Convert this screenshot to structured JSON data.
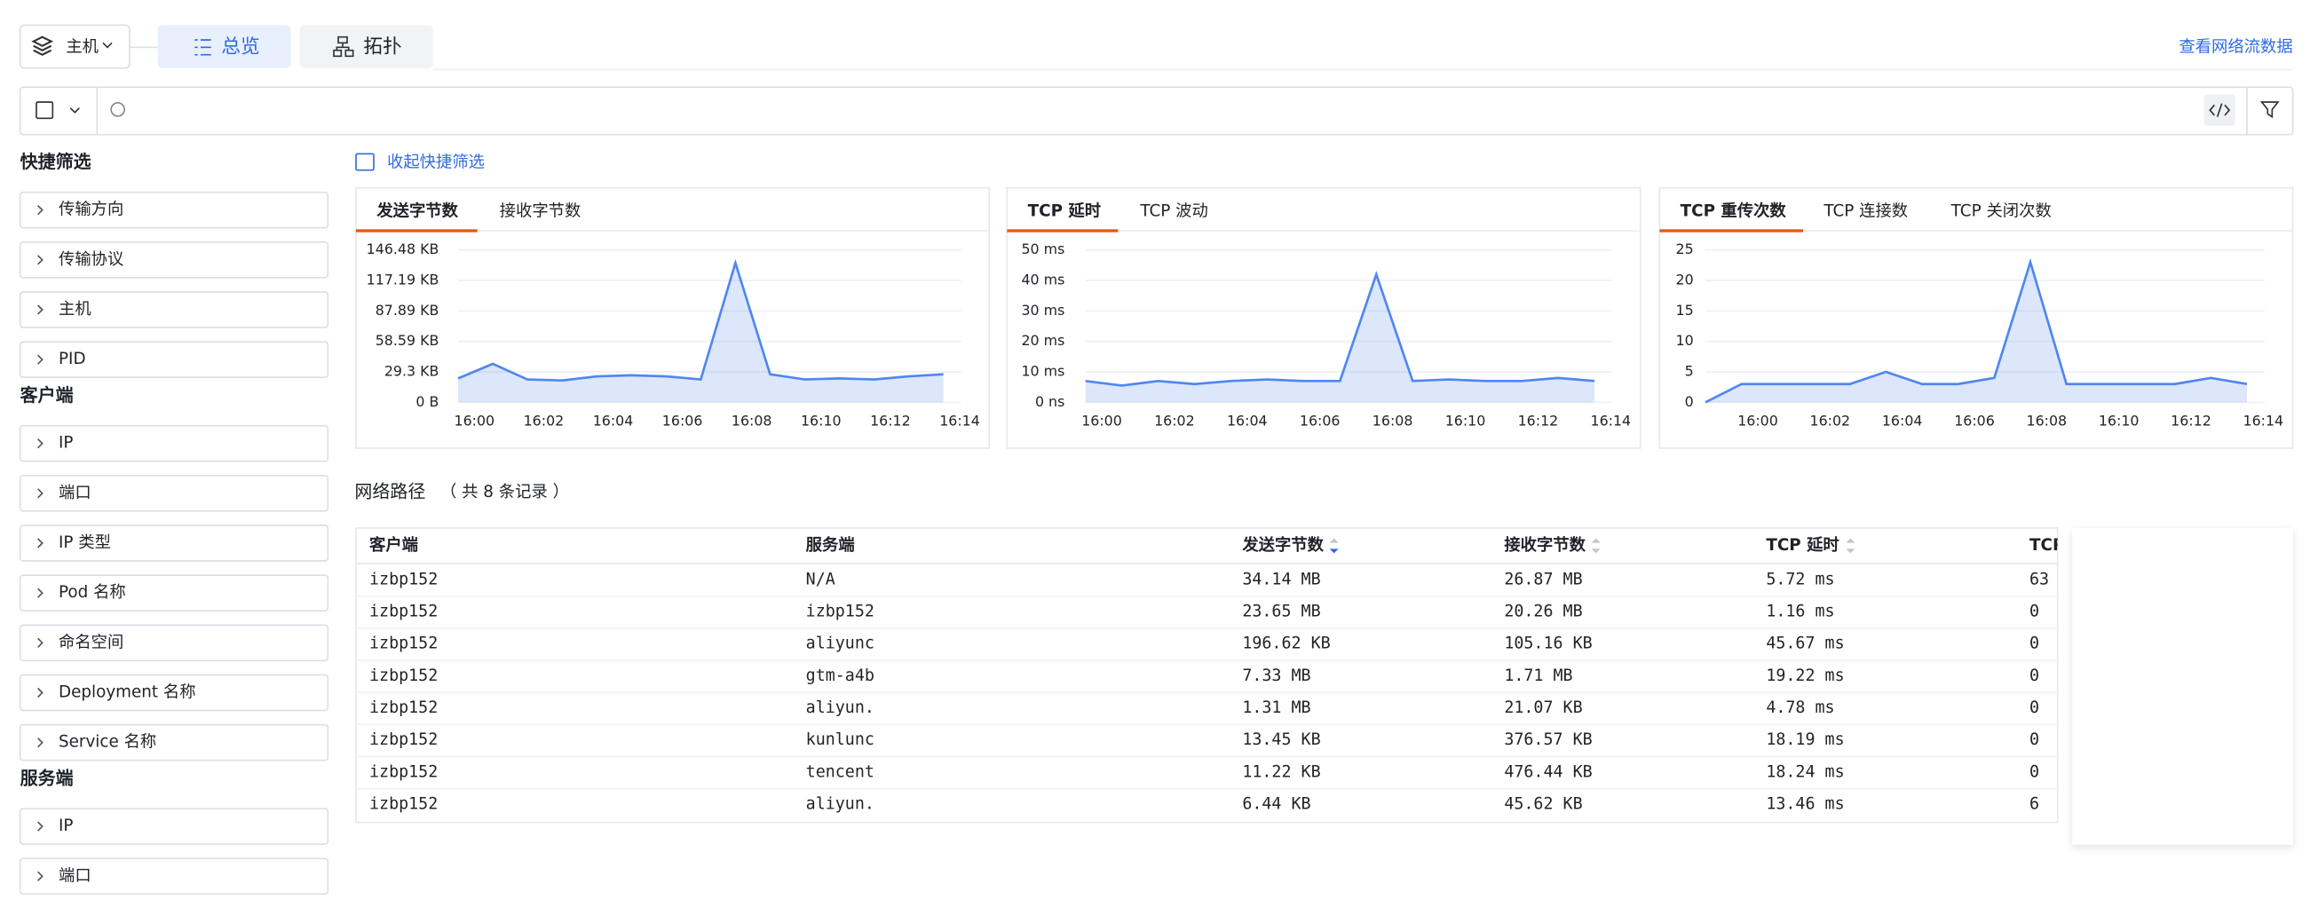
{
  "toolbar": {
    "host": "主机",
    "tabs": [
      "总览",
      "拓扑"
    ],
    "link": "查看网络流数据"
  },
  "sidebar": {
    "collapse": "收起快捷筛选",
    "groups": [
      {
        "title": "快捷筛选",
        "items": [
          "传输方向",
          "传输协议",
          "主机",
          "PID"
        ]
      },
      {
        "title": "客户端",
        "items": [
          "IP",
          "端口",
          "IP 类型",
          "Pod 名称",
          "命名空间",
          "Deployment 名称",
          "Service 名称"
        ]
      },
      {
        "title": "服务端",
        "items": [
          "IP",
          "端口"
        ]
      }
    ]
  },
  "chart_data": [
    {
      "type": "line",
      "tabs": [
        "发送字节数",
        "接收字节数"
      ],
      "color": "#4f87f0",
      "categories": [
        "16:00",
        null,
        "16:02",
        null,
        "16:04",
        null,
        "16:06",
        null,
        "16:08",
        null,
        "16:10",
        null,
        "16:12",
        null,
        "16:14"
      ],
      "values": [
        23,
        37,
        22,
        21,
        25,
        26,
        25,
        22,
        134,
        27,
        22,
        23,
        22,
        25,
        27
      ],
      "ylim": [
        0,
        146.48
      ],
      "yticks": [
        {
          "value": 0,
          "label": "0 B"
        },
        {
          "value": 29.3,
          "label": "29.3 KB"
        },
        {
          "value": 58.59,
          "label": "58.59 KB"
        },
        {
          "value": 87.89,
          "label": "87.89 KB"
        },
        {
          "value": 117.19,
          "label": "117.19 KB"
        },
        {
          "value": 146.48,
          "label": "146.48 KB"
        }
      ],
      "grid": true
    },
    {
      "type": "line",
      "tabs": [
        "TCP 延时",
        "TCP 波动"
      ],
      "color": "#4f87f0",
      "categories": [
        "16:00",
        null,
        "16:02",
        null,
        "16:04",
        null,
        "16:06",
        null,
        "16:08",
        null,
        "16:10",
        null,
        "16:12",
        null,
        "16:14"
      ],
      "values": [
        7,
        5.5,
        7,
        6,
        7,
        7.5,
        7,
        7,
        42,
        7,
        7.5,
        7,
        7,
        8,
        7
      ],
      "ylim": [
        0,
        50
      ],
      "yticks": [
        {
          "value": 0,
          "label": "0 ns"
        },
        {
          "value": 10,
          "label": "10 ms"
        },
        {
          "value": 20,
          "label": "20 ms"
        },
        {
          "value": 30,
          "label": "30 ms"
        },
        {
          "value": 40,
          "label": "40 ms"
        },
        {
          "value": 50,
          "label": "50 ms"
        }
      ],
      "grid": true
    },
    {
      "type": "line",
      "tabs": [
        "TCP 重传次数",
        "TCP 连接数",
        "TCP 关闭次数"
      ],
      "color": "#4f87f0",
      "categories": [
        null,
        "16:00",
        null,
        "16:02",
        null,
        "16:04",
        null,
        "16:06",
        null,
        "16:08",
        null,
        "16:10",
        null,
        "16:12",
        null,
        "16:14"
      ],
      "values": [
        0,
        3,
        3,
        3,
        3,
        5,
        3,
        3,
        4,
        23,
        3,
        3,
        3,
        3,
        4,
        3
      ],
      "ylim": [
        0,
        25
      ],
      "yticks": [
        0,
        5,
        10,
        15,
        20,
        25
      ],
      "grid": true
    }
  ],
  "table": {
    "title": "网络路径",
    "count": "（ 共 8 条记录 ）",
    "headers": [
      "客户端",
      "服务端",
      "发送字节数",
      "接收字节数",
      "TCP 延时",
      "TCP"
    ],
    "rows": [
      [
        "izbp152",
        "N/A",
        "34.14 MB",
        "26.87 MB",
        "5.72 ms",
        "63"
      ],
      [
        "izbp152",
        "izbp152",
        "23.65 MB",
        "20.26 MB",
        "1.16 ms",
        "0"
      ],
      [
        "izbp152",
        "aliyunc",
        "196.62 KB",
        "105.16 KB",
        "45.67 ms",
        "0"
      ],
      [
        "izbp152",
        "gtm-a4b",
        "7.33 MB",
        "1.71 MB",
        "19.22 ms",
        "0"
      ],
      [
        "izbp152",
        "aliyun.",
        "1.31 MB",
        "21.07 KB",
        "4.78 ms",
        "0"
      ],
      [
        "izbp152",
        "kunlunc",
        "13.45 KB",
        "376.57 KB",
        "18.19 ms",
        "0"
      ],
      [
        "izbp152",
        "tencent",
        "11.22 KB",
        "476.44 KB",
        "18.24 ms",
        "0"
      ],
      [
        "izbp152",
        "aliyun.",
        "6.44 KB",
        "45.62 KB",
        "13.46 ms",
        "6"
      ]
    ]
  }
}
